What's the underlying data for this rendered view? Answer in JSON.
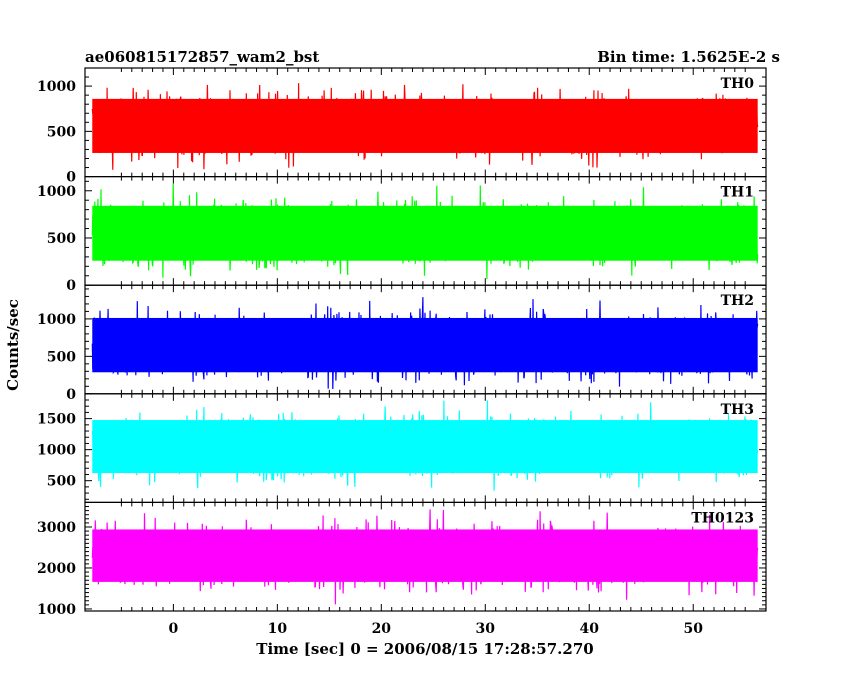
{
  "header": {
    "left_title": "ae060815172857_wam2_bst",
    "right_title": "Bin time: 1.5625E-2 s"
  },
  "chart_data": {
    "type": "line",
    "xlabel": "Time [sec] 0 = 2006/08/15 17:28:57.270",
    "ylabel": "Counts/sec",
    "xlim": [
      -8.5,
      57
    ],
    "x_range_data": [
      -7.8,
      56.2
    ],
    "x_ticks": [
      0,
      10,
      20,
      30,
      40,
      50
    ],
    "bin_time": 0.015625,
    "panels": [
      {
        "name": "TH0",
        "color": "#ff0000",
        "ylim": [
          0,
          1200
        ],
        "y_ticks": [
          0,
          500,
          1000
        ],
        "y_tick_labels": [
          "0",
          "500",
          "1000"
        ],
        "mean": 560,
        "low": 60,
        "high": 1180
      },
      {
        "name": "TH1",
        "color": "#00ff00",
        "ylim": [
          0,
          1150
        ],
        "y_ticks": [
          0,
          500,
          1000
        ],
        "y_tick_labels": [
          "0",
          "500",
          "1000"
        ],
        "mean": 550,
        "low": 60,
        "high": 1150
      },
      {
        "name": "TH2",
        "color": "#0000ff",
        "ylim": [
          0,
          1450
        ],
        "y_ticks": [
          0,
          500,
          1000
        ],
        "y_tick_labels": [
          "0",
          "500",
          "1000"
        ],
        "mean": 650,
        "low": 40,
        "high": 1400
      },
      {
        "name": "TH3",
        "color": "#00ffff",
        "ylim": [
          150,
          1900
        ],
        "y_ticks": [
          500,
          1000,
          1500
        ],
        "y_tick_labels": [
          "500",
          "1000",
          "1500"
        ],
        "mean": 1050,
        "low": 250,
        "high": 1850
      },
      {
        "name": "TH0123",
        "color": "#ff00ff",
        "ylim": [
          950,
          3600
        ],
        "y_ticks": [
          1000,
          2000,
          3000
        ],
        "y_tick_labels": [
          "1000",
          "2000",
          "3000"
        ],
        "mean": 2300,
        "low": 1050,
        "high": 3450
      }
    ]
  }
}
